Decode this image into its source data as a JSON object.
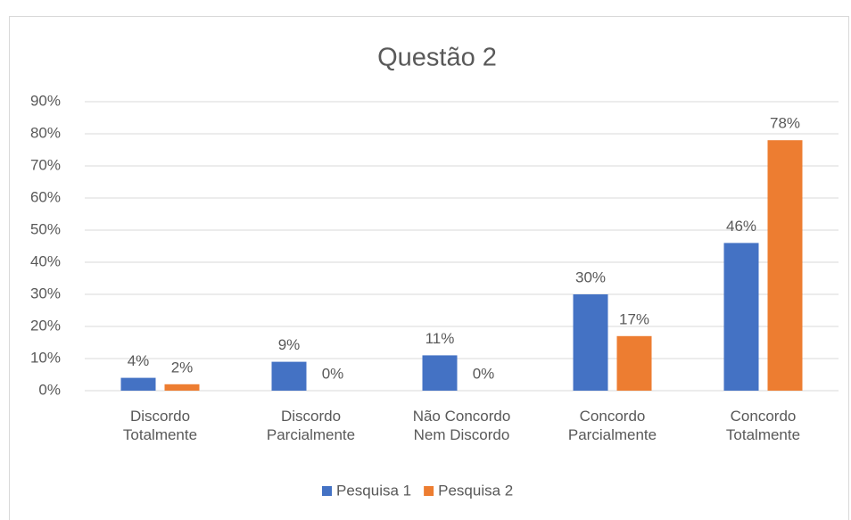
{
  "chart_data": {
    "type": "bar",
    "title": "Questão 2",
    "categories": [
      "Discordo\nTotalmente",
      "Discordo\nParcialmente",
      "Não Concordo\nNem Discordo",
      "Concordo\nParcialmente",
      "Concordo\nTotalmente"
    ],
    "series": [
      {
        "name": "Pesquisa 1",
        "color": "#4472c4",
        "values": [
          4,
          9,
          11,
          30,
          46
        ],
        "value_labels": [
          "4%",
          "9%",
          "11%",
          "30%",
          "46%"
        ]
      },
      {
        "name": "Pesquisa 2",
        "color": "#ed7d31",
        "values": [
          2,
          0,
          0,
          17,
          78
        ],
        "value_labels": [
          "2%",
          "0%",
          "0%",
          "17%",
          "78%"
        ]
      }
    ],
    "ylim": [
      0,
      90
    ],
    "yticks": [
      {
        "value": 0,
        "label": "0%"
      },
      {
        "value": 10,
        "label": "10%"
      },
      {
        "value": 20,
        "label": "20%"
      },
      {
        "value": 30,
        "label": "30%"
      },
      {
        "value": 40,
        "label": "40%"
      },
      {
        "value": 50,
        "label": "50%"
      },
      {
        "value": 60,
        "label": "60%"
      },
      {
        "value": 70,
        "label": "70%"
      },
      {
        "value": 80,
        "label": "80%"
      },
      {
        "value": 90,
        "label": "90%"
      }
    ],
    "grid": true,
    "legend": "bottom"
  }
}
